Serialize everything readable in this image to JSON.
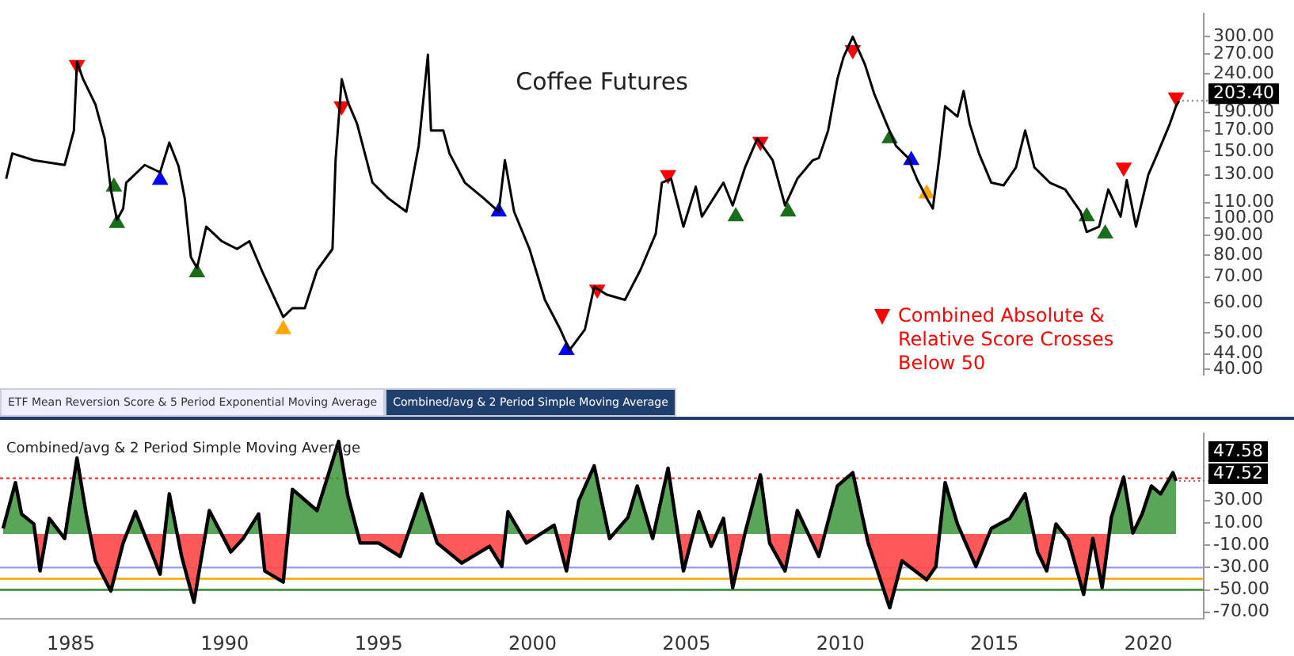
{
  "chart_data": [
    {
      "type": "line",
      "title": "Coffee Futures",
      "log": "y",
      "tick_labels": "y",
      "legend": "bottom right",
      "xlim": [
        1982.7,
        2021.8
      ],
      "ylim": [
        38.8,
        345
      ],
      "yticks": [
        {
          "value": 40,
          "label": "40.00"
        },
        {
          "value": 44,
          "label": "44.00"
        },
        {
          "value": 50,
          "label": "50.00"
        },
        {
          "value": 60,
          "label": "60.00"
        },
        {
          "value": 70,
          "label": "70.00"
        },
        {
          "value": 80,
          "label": "80.00"
        },
        {
          "value": 90,
          "label": "90.00"
        },
        {
          "value": 100,
          "label": "100.00"
        },
        {
          "value": 110,
          "label": "110.00"
        },
        {
          "value": 130,
          "label": "130.00"
        },
        {
          "value": 150,
          "label": "150.00"
        },
        {
          "value": 170,
          "label": "170.00"
        },
        {
          "value": 190,
          "label": "190.00"
        },
        {
          "value": 240,
          "label": "240.00"
        },
        {
          "value": 270,
          "label": "270.00"
        },
        {
          "value": 300,
          "label": "300.00"
        }
      ],
      "annotations": [
        {
          "text": "203.40",
          "x": 2021.0,
          "y": 203.4
        }
      ],
      "series": [
        {
          "color": "#000000",
          "x": [
            1982.9,
            1983.1,
            1983.8,
            1984.8,
            1985.1,
            1985.2,
            1985.4,
            1985.8,
            1986.1,
            1986.3,
            1986.5,
            1986.7,
            1986.8,
            1987.4,
            1987.9,
            1988.2,
            1988.5,
            1988.7,
            1988.9,
            1989.1,
            1989.4,
            1989.9,
            1990.4,
            1990.8,
            1991.2,
            1991.9,
            1992.2,
            1992.6,
            1993.0,
            1993.5,
            1993.6,
            1993.8,
            1994.0,
            1994.3,
            1994.8,
            1995.3,
            1995.9,
            1996.3,
            1996.6,
            1996.7,
            1997.1,
            1997.3,
            1997.8,
            1998.4,
            1998.9,
            1999.1,
            1999.4,
            1999.9,
            2000.4,
            2000.9,
            2001.2,
            2001.7,
            2002.0,
            2002.4,
            2003.0,
            2003.5,
            2004.0,
            2004.2,
            2004.5,
            2004.9,
            2005.3,
            2005.5,
            2006.2,
            2006.5,
            2006.9,
            2007.3,
            2007.8,
            2008.2,
            2008.6,
            2009.1,
            2009.3,
            2009.6,
            2009.9,
            2010.1,
            2010.4,
            2010.8,
            2011.1,
            2011.5,
            2011.8,
            2012.2,
            2012.5,
            2012.8,
            2013.0,
            2013.2,
            2013.4,
            2013.8,
            2014.0,
            2014.2,
            2014.5,
            2014.9,
            2015.3,
            2015.7,
            2016.0,
            2016.3,
            2016.8,
            2017.3,
            2017.8,
            2018.0,
            2018.4,
            2018.7,
            2019.1,
            2019.3,
            2019.6,
            2020.0,
            2020.3,
            2020.7,
            2020.9,
            2021.0
          ],
          "values": [
            127,
            148,
            142,
            138,
            170,
            258,
            232,
            199,
            162,
            119,
            99,
            106,
            124,
            138,
            132,
            158,
            137,
            113,
            79,
            74,
            95,
            87,
            83,
            87,
            73,
            55,
            58,
            58,
            73,
            83,
            142,
            232,
            202,
            177,
            124,
            113,
            104,
            155,
            269,
            170,
            170,
            148,
            124,
            113,
            104,
            142,
            104,
            83,
            61,
            51,
            45,
            51,
            66,
            63,
            61,
            73,
            91,
            124,
            127,
            95,
            121,
            101,
            124,
            108,
            136,
            162,
            142,
            108,
            127,
            142,
            144,
            170,
            232,
            265,
            300,
            253,
            212,
            177,
            155,
            144,
            126,
            113,
            106,
            142,
            197,
            185,
            216,
            177,
            148,
            124,
            122,
            136,
            170,
            136,
            124,
            119,
            104,
            92,
            95,
            119,
            101,
            126,
            95,
            130,
            148,
            177,
            197,
            203.4
          ]
        },
        {
          "type": "scatter",
          "marker": "triangle",
          "name": "Combined Absolute & Relative Score Crosses Below 50",
          "color": "#ff0000",
          "x": [
            1985.2,
            1993.8,
            2002.1,
            2004.4,
            2007.4,
            2010.4,
            2019.2,
            2020.9
          ],
          "values": [
            253,
            197,
            65,
            130,
            159,
            277,
            136,
            208
          ]
        },
        {
          "type": "scatter",
          "marker": "triangle",
          "color": "#1a6e1a",
          "x": [
            1986.4,
            1986.5,
            1989.1,
            2006.6,
            2008.3,
            2011.6,
            2018.0,
            2018.6
          ],
          "values": [
            121,
            97,
            72,
            101,
            104,
            162,
            101,
            91
          ]
        },
        {
          "type": "scatter",
          "marker": "triangle",
          "color": "#0000ff",
          "x": [
            1987.9,
            1998.9,
            2001.1,
            2012.3
          ],
          "values": [
            126,
            104,
            45,
            142
          ]
        },
        {
          "type": "scatter",
          "marker": "triangle",
          "color": "#ffa500",
          "x": [
            1991.9,
            2012.8
          ],
          "values": [
            51,
            116
          ]
        }
      ]
    },
    {
      "type": "area",
      "title": "Combined/avg & 2 Period Simple Moving Average",
      "xlim": [
        1982.7,
        2021.8
      ],
      "ylim": [
        -76,
        90
      ],
      "xticks": [
        1985,
        1990,
        1995,
        2000,
        2005,
        2010,
        2015,
        2020
      ],
      "yticks": [
        {
          "value": -70,
          "label": "-70.00"
        },
        {
          "value": -50,
          "label": "-50.00"
        },
        {
          "value": -30,
          "label": "-30.00"
        },
        {
          "value": -10,
          "label": "-10.00"
        },
        {
          "value": 10,
          "label": "10.00"
        },
        {
          "value": 30,
          "label": "30.00"
        }
      ],
      "annotations": [
        "ETF Mean Reversion Score & 5 Period Exponential Moving Average",
        "Combined/avg & 2 Period Simple Moving Average",
        {
          "text": "47.52",
          "x": 2020.9,
          "y": 47.52
        },
        "47.58"
      ],
      "ref_lines": [
        {
          "axis": "y",
          "value": 50,
          "color": "#ff3030",
          "line_style": "dotted"
        },
        {
          "axis": "y",
          "value": -30,
          "color": "#9999ff",
          "line_style": "solid"
        },
        {
          "axis": "y",
          "value": -40,
          "color": "#ffa500",
          "line_style": "solid"
        },
        {
          "axis": "y",
          "value": -50,
          "color": "#2e8b2e",
          "line_style": "solid"
        }
      ],
      "series": [
        {
          "color": "#000000",
          "x": [
            1982.8,
            1983.2,
            1983.4,
            1983.8,
            1984.0,
            1984.3,
            1984.8,
            1985.2,
            1985.5,
            1985.8,
            1986.3,
            1986.7,
            1987.1,
            1987.9,
            1988.2,
            1988.6,
            1989.0,
            1989.5,
            1990.2,
            1990.6,
            1991.1,
            1991.3,
            1991.9,
            1992.2,
            1993.0,
            1993.7,
            1994.0,
            1994.4,
            1995.0,
            1995.7,
            1996.4,
            1996.9,
            1997.7,
            1998.6,
            1999.0,
            1999.2,
            1999.8,
            2000.7,
            2001.1,
            2001.5,
            2002.0,
            2002.5,
            2003.1,
            2003.4,
            2003.9,
            2004.4,
            2004.9,
            2005.4,
            2005.8,
            2006.2,
            2006.5,
            2006.9,
            2007.4,
            2007.7,
            2008.2,
            2008.6,
            2009.3,
            2009.9,
            2010.4,
            2010.9,
            2011.6,
            2012.0,
            2012.8,
            2013.1,
            2013.4,
            2013.8,
            2014.4,
            2014.9,
            2015.5,
            2016.0,
            2016.4,
            2016.7,
            2017.0,
            2017.4,
            2017.9,
            2018.2,
            2018.5,
            2018.8,
            2019.2,
            2019.5,
            2019.8,
            2020.1,
            2020.4,
            2020.8,
            2020.9
          ],
          "values": [
            5,
            46,
            18,
            9,
            -33,
            14,
            -4,
            68,
            18,
            -24,
            -51,
            -8,
            20,
            -36,
            36,
            -20,
            -61,
            21,
            -16,
            -4,
            18,
            -33,
            -43,
            40,
            21,
            83,
            34,
            -8,
            -8,
            -20,
            36,
            -8,
            -26,
            -11,
            -29,
            20,
            -8,
            8,
            -33,
            30,
            61,
            -4,
            15,
            43,
            -4,
            59,
            -33,
            20,
            -11,
            14,
            -48,
            1,
            53,
            -8,
            -33,
            21,
            -20,
            43,
            55,
            -8,
            -66,
            -24,
            -41,
            -29,
            46,
            9,
            -29,
            5,
            14,
            36,
            -16,
            -33,
            9,
            -5,
            -54,
            -4,
            -48,
            15,
            51,
            1,
            18,
            43,
            36,
            55,
            47.52
          ]
        }
      ]
    }
  ]
}
